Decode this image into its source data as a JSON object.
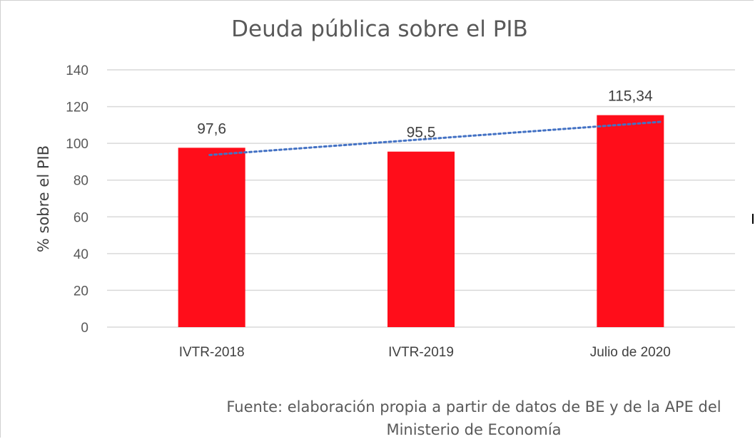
{
  "chart_data": {
    "type": "bar",
    "title": "Deuda pública sobre el PIB",
    "ylabel": "% sobre el PIB",
    "xlabel": "",
    "categories": [
      "IVTR-2018",
      "IVTR-2019",
      "Julio de 2020"
    ],
    "values": [
      97.6,
      95.5,
      115.34
    ],
    "data_labels": [
      "97,6",
      "95,5",
      "115,34"
    ],
    "ylim": [
      0,
      140
    ],
    "yticks": [
      0,
      20,
      40,
      60,
      80,
      100,
      120,
      140
    ],
    "grid": true,
    "legend": "none",
    "bar_color": "#ff0d1a",
    "trendline": {
      "type": "linear",
      "style": "dotted",
      "color": "#4472c4"
    }
  },
  "source_note": {
    "line1": "Fuente: elaboración propia a partir de datos de BE y de la APE del",
    "line2": "Ministerio de Economía"
  }
}
